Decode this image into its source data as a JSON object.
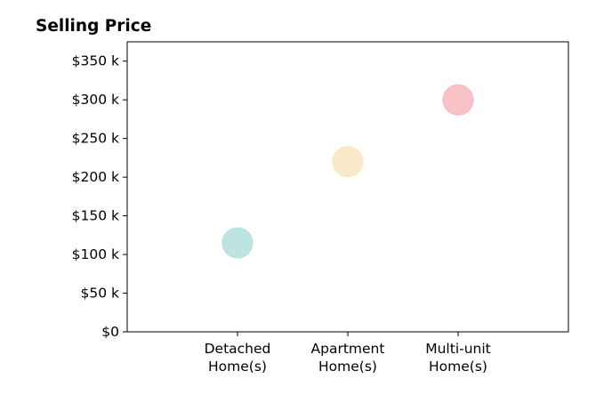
{
  "chart_data": {
    "type": "scatter",
    "title": "Selling Price",
    "xlabel": "",
    "ylabel": "",
    "categories": [
      "Detached\nHome(s)",
      "Apartment\nHome(s)",
      "Multi-unit\nHome(s)"
    ],
    "values": [
      115000,
      220000,
      300000
    ],
    "point_colors": [
      "#b2dfdb",
      "#f9e6c2",
      "#f7b7bc"
    ],
    "ylim": [
      0,
      375000
    ],
    "yticks": [
      0,
      50000,
      100000,
      150000,
      200000,
      250000,
      300000,
      350000
    ],
    "ytick_labels": [
      "$0",
      "$50 k",
      "$100 k",
      "$150 k",
      "$200 k",
      "$250 k",
      "$300 k",
      "$350 k"
    ],
    "grid": false,
    "legend": "none"
  }
}
